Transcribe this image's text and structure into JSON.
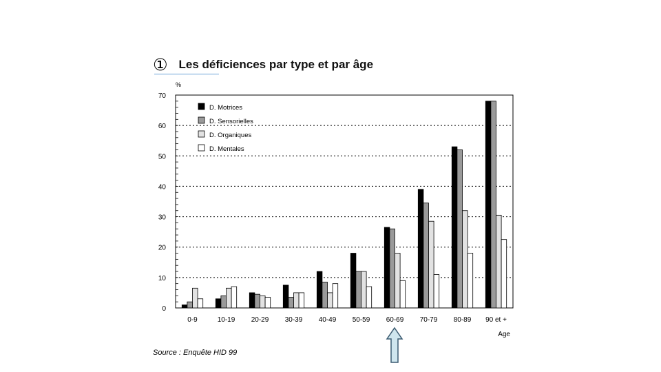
{
  "title": {
    "number": "①",
    "text": "Les déficiences par type et par âge"
  },
  "source": "Source : Enquête HID 99",
  "colors": {
    "motrices": "#000000",
    "sensorielles": "#9a9a9a",
    "organiques": "#e2e2e2",
    "mentales": "#ffffff",
    "arrow_fill": "#cfe6ee",
    "arrow_stroke": "#3a5a70"
  },
  "highlight": {
    "category": "60-69",
    "icon": "up-arrow-icon"
  },
  "chart_data": {
    "type": "bar",
    "title": "Les déficiences par type et par âge",
    "ylabel": "%",
    "xlabel": "Age",
    "ylim": [
      0,
      70
    ],
    "yticks": [
      0,
      10,
      20,
      30,
      40,
      50,
      60,
      70
    ],
    "grid": "horizontal dotted",
    "legend_position": "top-left",
    "categories": [
      "0-9",
      "10-19",
      "20-29",
      "30-39",
      "40-49",
      "50-59",
      "60-69",
      "70-79",
      "80-89",
      "90 et +"
    ],
    "series": [
      {
        "name": "D. Motrices",
        "values": [
          1,
          3,
          5,
          7.5,
          12,
          18,
          26.5,
          39,
          53,
          68
        ]
      },
      {
        "name": "D. Sensorielles",
        "values": [
          2,
          4,
          4.5,
          3.5,
          8.5,
          12,
          26,
          34.5,
          52,
          68
        ]
      },
      {
        "name": "D. Organiques",
        "values": [
          6.5,
          6.5,
          4,
          5,
          5,
          12,
          18,
          28.5,
          32,
          30.5
        ]
      },
      {
        "name": "D. Mentales",
        "values": [
          3,
          7,
          3.5,
          5,
          8,
          7,
          9,
          11,
          18,
          22.5
        ]
      }
    ]
  }
}
